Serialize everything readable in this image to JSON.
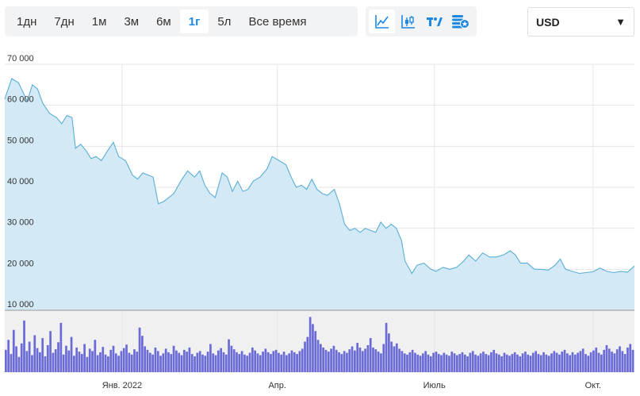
{
  "toolbar": {
    "ranges": [
      "1дн",
      "7дн",
      "1м",
      "3м",
      "6м",
      "1г",
      "5л",
      "Все время"
    ],
    "active_range": "1г",
    "chart_types": [
      "line-chart-icon",
      "candlestick-icon",
      "tradingview-icon",
      "compare-coins-icon"
    ],
    "active_chart_type": "line-chart-icon",
    "currency": "USD",
    "accent_color": "#1e88e5"
  },
  "chart_data": {
    "type": "area",
    "title": "",
    "xlabel": "",
    "ylabel": "",
    "ylim": [
      10000,
      70000
    ],
    "y_ticks": [
      10000,
      20000,
      30000,
      40000,
      50000,
      60000,
      70000
    ],
    "y_tick_labels": [
      "10 000",
      "20 000",
      "30 000",
      "40 000",
      "50 000",
      "60 000",
      "70 000"
    ],
    "x_range": [
      "2021-10-25",
      "2022-10-25"
    ],
    "x_ticks": [
      {
        "date": "2022-01-01",
        "label": "Янв. 2022"
      },
      {
        "date": "2022-04-01",
        "label": "Апр."
      },
      {
        "date": "2022-07-01",
        "label": "Июль"
      },
      {
        "date": "2022-10-01",
        "label": "Окт."
      }
    ],
    "grid": true,
    "series": [
      {
        "line_color": "#5aaed6",
        "fill_color": "#d3e9f5",
        "points": [
          [
            "2021-10-25",
            61500
          ],
          [
            "2021-10-29",
            66500
          ],
          [
            "2021-11-02",
            65500
          ],
          [
            "2021-11-07",
            61000
          ],
          [
            "2021-11-10",
            65000
          ],
          [
            "2021-11-13",
            64000
          ],
          [
            "2021-11-16",
            60500
          ],
          [
            "2021-11-20",
            58000
          ],
          [
            "2021-11-24",
            57000
          ],
          [
            "2021-11-27",
            55500
          ],
          [
            "2021-11-30",
            57500
          ],
          [
            "2021-12-03",
            57000
          ],
          [
            "2021-12-05",
            49500
          ],
          [
            "2021-12-08",
            50500
          ],
          [
            "2021-12-11",
            49000
          ],
          [
            "2021-12-14",
            47000
          ],
          [
            "2021-12-17",
            47500
          ],
          [
            "2021-12-20",
            46500
          ],
          [
            "2021-12-23",
            48500
          ],
          [
            "2021-12-27",
            51000
          ],
          [
            "2021-12-30",
            47500
          ],
          [
            "2022-01-03",
            46500
          ],
          [
            "2022-01-07",
            43000
          ],
          [
            "2022-01-10",
            42000
          ],
          [
            "2022-01-13",
            43500
          ],
          [
            "2022-01-16",
            43000
          ],
          [
            "2022-01-19",
            42500
          ],
          [
            "2022-01-22",
            36000
          ],
          [
            "2022-01-25",
            36500
          ],
          [
            "2022-01-28",
            37500
          ],
          [
            "2022-01-31",
            38500
          ],
          [
            "2022-02-04",
            41500
          ],
          [
            "2022-02-08",
            44000
          ],
          [
            "2022-02-12",
            42500
          ],
          [
            "2022-02-15",
            44000
          ],
          [
            "2022-02-18",
            40500
          ],
          [
            "2022-02-21",
            38500
          ],
          [
            "2022-02-24",
            37500
          ],
          [
            "2022-02-28",
            43500
          ],
          [
            "2022-03-03",
            42500
          ],
          [
            "2022-03-06",
            39000
          ],
          [
            "2022-03-09",
            41500
          ],
          [
            "2022-03-12",
            39000
          ],
          [
            "2022-03-15",
            39500
          ],
          [
            "2022-03-18",
            41500
          ],
          [
            "2022-03-22",
            42500
          ],
          [
            "2022-03-26",
            44500
          ],
          [
            "2022-03-29",
            47500
          ],
          [
            "2022-04-02",
            46500
          ],
          [
            "2022-04-06",
            45500
          ],
          [
            "2022-04-09",
            42500
          ],
          [
            "2022-04-12",
            40000
          ],
          [
            "2022-04-15",
            40500
          ],
          [
            "2022-04-18",
            39500
          ],
          [
            "2022-04-21",
            42000
          ],
          [
            "2022-04-24",
            39500
          ],
          [
            "2022-04-27",
            38500
          ],
          [
            "2022-04-30",
            38000
          ],
          [
            "2022-05-04",
            39500
          ],
          [
            "2022-05-07",
            36000
          ],
          [
            "2022-05-10",
            31000
          ],
          [
            "2022-05-13",
            29500
          ],
          [
            "2022-05-16",
            30000
          ],
          [
            "2022-05-19",
            29000
          ],
          [
            "2022-05-22",
            30000
          ],
          [
            "2022-05-25",
            29500
          ],
          [
            "2022-05-28",
            29000
          ],
          [
            "2022-05-31",
            31500
          ],
          [
            "2022-06-03",
            30000
          ],
          [
            "2022-06-06",
            31000
          ],
          [
            "2022-06-09",
            30000
          ],
          [
            "2022-06-12",
            27000
          ],
          [
            "2022-06-14",
            22000
          ],
          [
            "2022-06-18",
            19000
          ],
          [
            "2022-06-21",
            21000
          ],
          [
            "2022-06-25",
            21500
          ],
          [
            "2022-06-29",
            20000
          ],
          [
            "2022-07-02",
            19500
          ],
          [
            "2022-07-06",
            20500
          ],
          [
            "2022-07-10",
            20000
          ],
          [
            "2022-07-14",
            20500
          ],
          [
            "2022-07-18",
            22000
          ],
          [
            "2022-07-21",
            23500
          ],
          [
            "2022-07-25",
            22000
          ],
          [
            "2022-07-29",
            24000
          ],
          [
            "2022-08-02",
            23000
          ],
          [
            "2022-08-06",
            23000
          ],
          [
            "2022-08-10",
            23500
          ],
          [
            "2022-08-14",
            24500
          ],
          [
            "2022-08-17",
            23500
          ],
          [
            "2022-08-20",
            21500
          ],
          [
            "2022-08-24",
            21500
          ],
          [
            "2022-08-28",
            20000
          ],
          [
            "2022-09-01",
            20000
          ],
          [
            "2022-09-05",
            19800
          ],
          [
            "2022-09-09",
            21000
          ],
          [
            "2022-09-12",
            22500
          ],
          [
            "2022-09-15",
            20000
          ],
          [
            "2022-09-19",
            19500
          ],
          [
            "2022-09-23",
            19000
          ],
          [
            "2022-09-27",
            19200
          ],
          [
            "2022-10-01",
            19400
          ],
          [
            "2022-10-05",
            20300
          ],
          [
            "2022-10-09",
            19500
          ],
          [
            "2022-10-13",
            19200
          ],
          [
            "2022-10-17",
            19500
          ],
          [
            "2022-10-21",
            19300
          ],
          [
            "2022-10-25",
            20800
          ]
        ]
      }
    ],
    "volume": {
      "color": "#6b6bd6",
      "background": "#f0f0f0",
      "relative_values": [
        0.38,
        0.55,
        0.31,
        0.72,
        0.44,
        0.26,
        0.49,
        0.88,
        0.36,
        0.52,
        0.29,
        0.63,
        0.41,
        0.34,
        0.58,
        0.27,
        0.46,
        0.7,
        0.33,
        0.39,
        0.51,
        0.84,
        0.3,
        0.45,
        0.37,
        0.6,
        0.28,
        0.42,
        0.35,
        0.31,
        0.48,
        0.26,
        0.4,
        0.36,
        0.55,
        0.29,
        0.34,
        0.43,
        0.3,
        0.27,
        0.38,
        0.45,
        0.32,
        0.28,
        0.36,
        0.41,
        0.47,
        0.33,
        0.3,
        0.39,
        0.35,
        0.76,
        0.62,
        0.44,
        0.38,
        0.33,
        0.3,
        0.42,
        0.36,
        0.28,
        0.32,
        0.4,
        0.34,
        0.31,
        0.45,
        0.37,
        0.33,
        0.29,
        0.38,
        0.35,
        0.42,
        0.31,
        0.27,
        0.33,
        0.36,
        0.3,
        0.28,
        0.35,
        0.48,
        0.32,
        0.29,
        0.37,
        0.41,
        0.34,
        0.3,
        0.56,
        0.45,
        0.39,
        0.34,
        0.31,
        0.36,
        0.3,
        0.28,
        0.33,
        0.42,
        0.37,
        0.32,
        0.29,
        0.35,
        0.4,
        0.34,
        0.31,
        0.36,
        0.38,
        0.33,
        0.3,
        0.35,
        0.29,
        0.32,
        0.37,
        0.34,
        0.31,
        0.36,
        0.4,
        0.52,
        0.6,
        0.94,
        0.82,
        0.7,
        0.55,
        0.48,
        0.42,
        0.38,
        0.35,
        0.4,
        0.45,
        0.38,
        0.34,
        0.31,
        0.36,
        0.33,
        0.39,
        0.44,
        0.37,
        0.5,
        0.42,
        0.36,
        0.4,
        0.46,
        0.58,
        0.42,
        0.39,
        0.35,
        0.32,
        0.48,
        0.84,
        0.66,
        0.52,
        0.44,
        0.49,
        0.4,
        0.36,
        0.32,
        0.3,
        0.34,
        0.38,
        0.33,
        0.3,
        0.28,
        0.32,
        0.36,
        0.3,
        0.27,
        0.33,
        0.35,
        0.31,
        0.29,
        0.33,
        0.3,
        0.28,
        0.35,
        0.32,
        0.29,
        0.31,
        0.34,
        0.3,
        0.27,
        0.33,
        0.36,
        0.3,
        0.28,
        0.32,
        0.35,
        0.31,
        0.29,
        0.34,
        0.38,
        0.32,
        0.3,
        0.27,
        0.33,
        0.3,
        0.28,
        0.31,
        0.34,
        0.3,
        0.27,
        0.32,
        0.35,
        0.3,
        0.28,
        0.33,
        0.36,
        0.31,
        0.29,
        0.34,
        0.3,
        0.28,
        0.32,
        0.36,
        0.33,
        0.3,
        0.35,
        0.38,
        0.32,
        0.29,
        0.34,
        0.3,
        0.33,
        0.36,
        0.4,
        0.31,
        0.28,
        0.34,
        0.37,
        0.42,
        0.33,
        0.3,
        0.38,
        0.46,
        0.4,
        0.35,
        0.32,
        0.39,
        0.44,
        0.36,
        0.31,
        0.42,
        0.48,
        0.38
      ]
    }
  }
}
